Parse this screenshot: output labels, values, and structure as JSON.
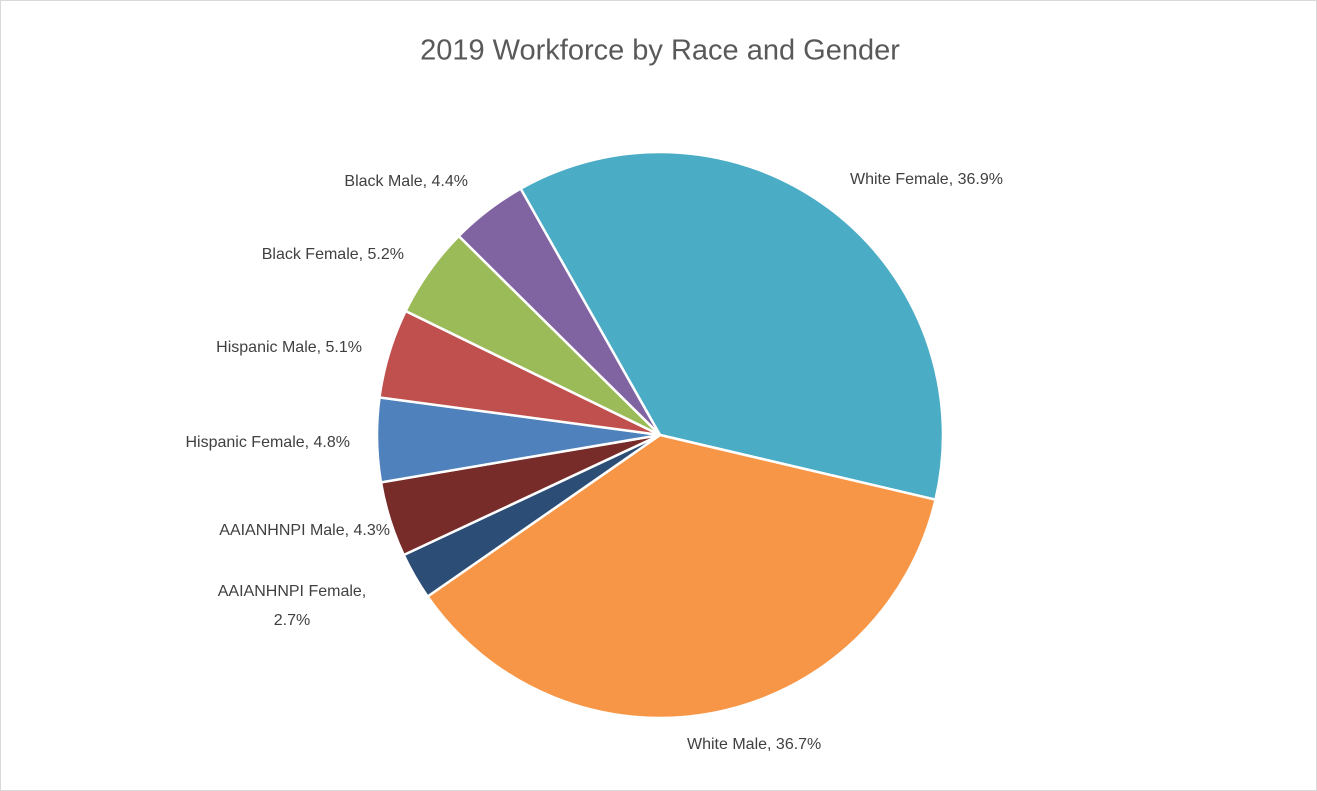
{
  "chart_data": {
    "type": "pie",
    "title": "2019 Workforce by Race and Gender",
    "categories": [
      "White Female",
      "White Male",
      "AAIANHNPI Female",
      "AAIANHNPI Male",
      "Hispanic Female",
      "Hispanic Male",
      "Black Female",
      "Black Male"
    ],
    "values": [
      36.9,
      36.7,
      2.7,
      4.3,
      4.8,
      5.1,
      5.2,
      4.4
    ],
    "value_labels": [
      "White Female, 36.9%",
      "White Male, 36.7%",
      "AAIANHNPI Female, 2.7%",
      "AAIANHNPI Male, 4.3%",
      "Hispanic Female, 4.8%",
      "Hispanic Male, 5.1%",
      "Black Female, 5.2%",
      "Black Male, 4.4%"
    ],
    "colors": [
      "#4bacc6",
      "#f79646",
      "#2c4d75",
      "#772c2a",
      "#4f81bd",
      "#c0504d",
      "#9bbb59",
      "#8064a2"
    ]
  }
}
